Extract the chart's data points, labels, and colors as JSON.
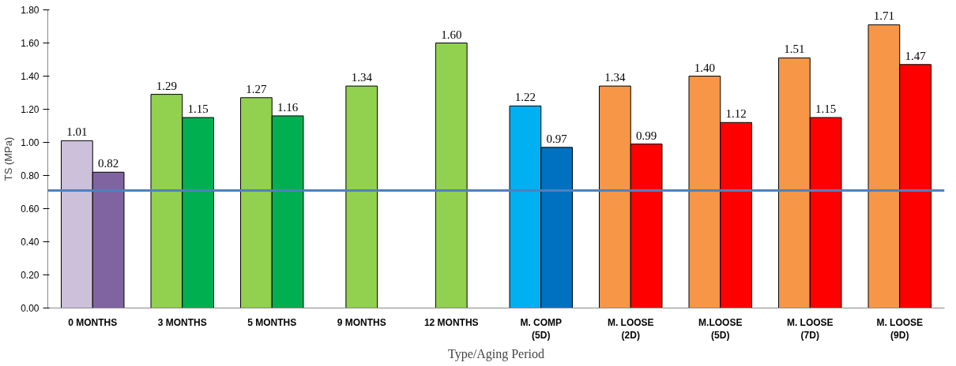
{
  "chart_data": {
    "type": "bar",
    "xlabel": "Type/Aging Period",
    "ylabel": "TS (MPa)",
    "categories": [
      "0 MONTHS",
      "3 MONTHS",
      "5 MONTHS",
      "9 MONTHS",
      "12 MONTHS",
      "M. COMP\n(5D)",
      "M. LOOSE\n(2D)",
      "M.LOOSE\n(5D)",
      "M. LOOSE\n(7D)",
      "M. LOOSE\n(9D)"
    ],
    "series": [
      {
        "values": [
          1.01,
          1.29,
          1.27,
          1.34,
          1.6,
          1.22,
          1.34,
          1.4,
          1.51,
          1.71
        ],
        "colors": [
          "#ccc0da",
          "#92d050",
          "#92d050",
          "#92d050",
          "#92d050",
          "#00b0f0",
          "#f79646",
          "#f79646",
          "#f79646",
          "#f79646"
        ],
        "value_labels": [
          "1.01",
          "1.29",
          "1.27",
          "1.34",
          "1.60",
          "1.22",
          "1.34",
          "1.40",
          "1.51",
          "1.71"
        ]
      },
      {
        "values": [
          0.82,
          1.15,
          1.16,
          null,
          null,
          0.97,
          0.99,
          1.12,
          1.15,
          1.47
        ],
        "colors": [
          "#8064a2",
          "#00b050",
          "#00b050",
          null,
          null,
          "#0070c0",
          "#ff0000",
          "#ff0000",
          "#ff0000",
          "#ff0000"
        ],
        "value_labels": [
          "0.82",
          "1.15",
          "1.16",
          null,
          null,
          "0.97",
          "0.99",
          "1.12",
          "1.15",
          "1.47"
        ]
      }
    ],
    "ylim": [
      0,
      1.8
    ],
    "yticks": [
      {
        "value": 0,
        "label": "0.00"
      },
      {
        "value": 0.2,
        "label": "0.20"
      },
      {
        "value": 0.4,
        "label": "0.40"
      },
      {
        "value": 0.6,
        "label": "0.60"
      },
      {
        "value": 0.8,
        "label": "0.80"
      },
      {
        "value": 1.0,
        "label": "1.00"
      },
      {
        "value": 1.2,
        "label": "1.20"
      },
      {
        "value": 1.4,
        "label": "1.40"
      },
      {
        "value": 1.6,
        "label": "1.60"
      },
      {
        "value": 1.8,
        "label": "1.80"
      }
    ],
    "ref_lines": [
      {
        "axis": "y",
        "value": 0.71,
        "color": "#4f81bd"
      }
    ],
    "grid": false
  }
}
